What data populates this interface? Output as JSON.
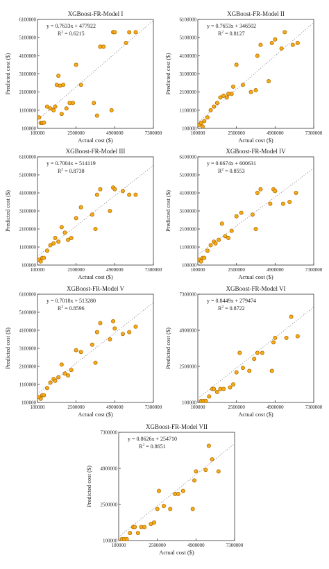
{
  "chart_data": [
    {
      "type": "scatter",
      "title": "XGBoost-FR-Model I",
      "xlabel": "Actual cost ($)",
      "ylabel": "Predicted cost ($)",
      "xlim": [
        100000,
        7300000
      ],
      "ylim": [
        100000,
        6100000
      ],
      "xticks": [
        "100000",
        "2500000",
        "4900000",
        "7300000"
      ],
      "yticks": [
        "100000",
        "1100000",
        "2100000",
        "3100000",
        "4100000",
        "5100000",
        "6100000"
      ],
      "equation": "y = 0.7633x + 477922",
      "r2_label": "R",
      "r2_sup": "2",
      "r2_value": " = 0.6215",
      "trend": {
        "slope": 0.7633,
        "intercept": 477922
      },
      "points": [
        [
          200000,
          700000
        ],
        [
          300000,
          400000
        ],
        [
          400000,
          400000
        ],
        [
          500000,
          420000
        ],
        [
          700000,
          1300000
        ],
        [
          900000,
          1200000
        ],
        [
          1100000,
          1100000
        ],
        [
          1200000,
          1300000
        ],
        [
          1300000,
          2500000
        ],
        [
          1400000,
          3000000
        ],
        [
          1500000,
          2450000
        ],
        [
          1600000,
          900000
        ],
        [
          1700000,
          2500000
        ],
        [
          1900000,
          1200000
        ],
        [
          2100000,
          1500000
        ],
        [
          2300000,
          1500000
        ],
        [
          2500000,
          3600000
        ],
        [
          2800000,
          2500000
        ],
        [
          3600000,
          1500000
        ],
        [
          3800000,
          800000
        ],
        [
          4000000,
          4600000
        ],
        [
          4200000,
          4600000
        ],
        [
          4700000,
          1100000
        ],
        [
          4800000,
          5400000
        ],
        [
          4900000,
          5400000
        ],
        [
          5600000,
          4800000
        ],
        [
          5800000,
          5400000
        ],
        [
          6200000,
          5400000
        ]
      ]
    },
    {
      "type": "scatter",
      "title": "XGBoost-FR-Model II",
      "xlabel": "Actual cost ($)",
      "ylabel": "Predicted cost ($)",
      "xlim": [
        100000,
        7300000
      ],
      "ylim": [
        100000,
        6100000
      ],
      "xticks": [
        "100000",
        "2500000",
        "4900000",
        "7300000"
      ],
      "yticks": [
        "100000",
        "1100000",
        "2100000",
        "3100000",
        "4100000",
        "5100000",
        "6100000"
      ],
      "equation": "y = 0.7653x + 346502",
      "r2_label": "R",
      "r2_sup": "2",
      "r2_value": " = 0.8127",
      "trend": {
        "slope": 0.7653,
        "intercept": 346502
      },
      "points": [
        [
          200000,
          300000
        ],
        [
          300000,
          400000
        ],
        [
          400000,
          200000
        ],
        [
          500000,
          500000
        ],
        [
          700000,
          700000
        ],
        [
          900000,
          1100000
        ],
        [
          1100000,
          1300000
        ],
        [
          1300000,
          1500000
        ],
        [
          1500000,
          1800000
        ],
        [
          1700000,
          1900000
        ],
        [
          1900000,
          1800000
        ],
        [
          2000000,
          2000000
        ],
        [
          2200000,
          2000000
        ],
        [
          2300000,
          2400000
        ],
        [
          2500000,
          3600000
        ],
        [
          2900000,
          2500000
        ],
        [
          3400000,
          2100000
        ],
        [
          3700000,
          2200000
        ],
        [
          3800000,
          4100000
        ],
        [
          4000000,
          4700000
        ],
        [
          4500000,
          2700000
        ],
        [
          4700000,
          4800000
        ],
        [
          4900000,
          5000000
        ],
        [
          5300000,
          4500000
        ],
        [
          5500000,
          5400000
        ],
        [
          6000000,
          4700000
        ],
        [
          6300000,
          4800000
        ]
      ]
    },
    {
      "type": "scatter",
      "title": "XGBoost-FR-Model III",
      "xlabel": "Actual cost ($)",
      "ylabel": "Predicted cost ($)",
      "xlim": [
        100000,
        7300000
      ],
      "ylim": [
        100000,
        6100000
      ],
      "xticks": [
        "100000",
        "2500000",
        "4900000",
        "7300000"
      ],
      "yticks": [
        "100000",
        "1100000",
        "2100000",
        "3100000",
        "4100000",
        "5100000",
        "6100000"
      ],
      "equation": "y = 0.7004x + 514119",
      "r2_label": "R",
      "r2_sup": "2",
      "r2_value": " = 0.8738",
      "trend": {
        "slope": 0.7004,
        "intercept": 514119
      },
      "points": [
        [
          200000,
          400000
        ],
        [
          300000,
          300000
        ],
        [
          400000,
          500000
        ],
        [
          500000,
          500000
        ],
        [
          700000,
          900000
        ],
        [
          900000,
          1200000
        ],
        [
          1100000,
          1300000
        ],
        [
          1200000,
          1600000
        ],
        [
          1400000,
          1400000
        ],
        [
          1600000,
          2200000
        ],
        [
          1800000,
          1900000
        ],
        [
          2000000,
          1500000
        ],
        [
          2200000,
          1600000
        ],
        [
          2500000,
          2700000
        ],
        [
          2800000,
          3300000
        ],
        [
          3500000,
          2900000
        ],
        [
          3700000,
          2100000
        ],
        [
          3800000,
          4000000
        ],
        [
          4000000,
          4300000
        ],
        [
          4600000,
          3100000
        ],
        [
          4800000,
          4400000
        ],
        [
          4900000,
          4300000
        ],
        [
          5400000,
          4200000
        ],
        [
          5800000,
          4000000
        ],
        [
          6200000,
          4000000
        ]
      ]
    },
    {
      "type": "scatter",
      "title": "XGBoost-FR-Model IV",
      "xlabel": "Actual cost ($)",
      "ylabel": "Predicted cost ($)",
      "xlim": [
        100000,
        7300000
      ],
      "ylim": [
        100000,
        6100000
      ],
      "xticks": [
        "100000",
        "2500000",
        "4900000",
        "7300000"
      ],
      "yticks": [
        "100000",
        "1100000",
        "2100000",
        "3100000",
        "4100000",
        "5100000",
        "6100000"
      ],
      "equation": "y = 0.6674x + 600631",
      "r2_label": "R",
      "r2_sup": "2",
      "r2_value": " = 0.8553",
      "trend": {
        "slope": 0.6674,
        "intercept": 600631
      },
      "points": [
        [
          200000,
          400000
        ],
        [
          300000,
          300000
        ],
        [
          400000,
          500000
        ],
        [
          500000,
          500000
        ],
        [
          700000,
          900000
        ],
        [
          900000,
          1200000
        ],
        [
          1100000,
          1400000
        ],
        [
          1200000,
          1300000
        ],
        [
          1400000,
          1500000
        ],
        [
          1600000,
          2400000
        ],
        [
          1800000,
          1700000
        ],
        [
          2000000,
          1600000
        ],
        [
          2200000,
          2000000
        ],
        [
          2500000,
          2800000
        ],
        [
          2800000,
          3000000
        ],
        [
          3500000,
          2900000
        ],
        [
          3700000,
          2100000
        ],
        [
          3800000,
          4100000
        ],
        [
          4000000,
          4300000
        ],
        [
          4600000,
          3500000
        ],
        [
          4800000,
          4300000
        ],
        [
          4900000,
          4200000
        ],
        [
          5400000,
          3500000
        ],
        [
          5800000,
          3600000
        ],
        [
          6200000,
          4100000
        ]
      ]
    },
    {
      "type": "scatter",
      "title": "XGBoost-FR-Model V",
      "xlabel": "Actual cost ($)",
      "ylabel": "Predicted cost ($)",
      "xlim": [
        100000,
        7300000
      ],
      "ylim": [
        100000,
        6100000
      ],
      "xticks": [
        "100000",
        "2500000",
        "4900000",
        "7300000"
      ],
      "yticks": [
        "100000",
        "1100000",
        "2100000",
        "3100000",
        "4100000",
        "5100000",
        "6100000"
      ],
      "equation": "y = 0.7018x + 513280",
      "r2_label": "R",
      "r2_sup": "2",
      "r2_value": " = 0.8596",
      "trend": {
        "slope": 0.7018,
        "intercept": 513280
      },
      "points": [
        [
          200000,
          400000
        ],
        [
          300000,
          300000
        ],
        [
          400000,
          500000
        ],
        [
          500000,
          500000
        ],
        [
          700000,
          900000
        ],
        [
          900000,
          1200000
        ],
        [
          1100000,
          1400000
        ],
        [
          1200000,
          1300000
        ],
        [
          1400000,
          1500000
        ],
        [
          1600000,
          2200000
        ],
        [
          1800000,
          1700000
        ],
        [
          2000000,
          1600000
        ],
        [
          2200000,
          1900000
        ],
        [
          2500000,
          3000000
        ],
        [
          2800000,
          2900000
        ],
        [
          3500000,
          3300000
        ],
        [
          3700000,
          2300000
        ],
        [
          3800000,
          4000000
        ],
        [
          4000000,
          4500000
        ],
        [
          4600000,
          3600000
        ],
        [
          4800000,
          4600000
        ],
        [
          4900000,
          4200000
        ],
        [
          5400000,
          3900000
        ],
        [
          5800000,
          4000000
        ],
        [
          6200000,
          4300000
        ]
      ]
    },
    {
      "type": "scatter",
      "title": "XGBoost-FR-Model VI",
      "xlabel": "Actual cost ($)",
      "ylabel": "Predicted cost ($)",
      "xlim": [
        100000,
        7300000
      ],
      "ylim": [
        100000,
        7300000
      ],
      "xticks": [
        "100000",
        "2500000",
        "4900000",
        "7300000"
      ],
      "yticks": [
        "100000",
        "2500000",
        "4900000",
        "7300000"
      ],
      "equation": "y = 0.8449x + 279474",
      "r2_label": "R",
      "r2_sup": "2",
      "r2_value": " = 0.8722",
      "trend": {
        "slope": 0.8449,
        "intercept": 279474
      },
      "points": [
        [
          300000,
          200000
        ],
        [
          450000,
          200000
        ],
        [
          600000,
          200000
        ],
        [
          800000,
          500000
        ],
        [
          1000000,
          1000000
        ],
        [
          1100000,
          1000000
        ],
        [
          1300000,
          800000
        ],
        [
          1500000,
          1000000
        ],
        [
          1700000,
          1000000
        ],
        [
          2100000,
          1100000
        ],
        [
          2300000,
          1300000
        ],
        [
          2500000,
          2100000
        ],
        [
          2700000,
          3400000
        ],
        [
          2900000,
          2400000
        ],
        [
          3300000,
          2200000
        ],
        [
          3600000,
          3000000
        ],
        [
          3800000,
          3400000
        ],
        [
          4100000,
          3400000
        ],
        [
          4700000,
          2200000
        ],
        [
          4800000,
          4100000
        ],
        [
          4900000,
          4400000
        ],
        [
          5600000,
          4400000
        ],
        [
          5900000,
          5800000
        ],
        [
          6300000,
          4500000
        ]
      ]
    },
    {
      "type": "scatter",
      "title": "XGBoost-FR-Model VII",
      "xlabel": "Actual cost ($)",
      "ylabel": "Predicted cost ($)",
      "xlim": [
        100000,
        7300000
      ],
      "ylim": [
        100000,
        7300000
      ],
      "xticks": [
        "100000",
        "2500000",
        "4900000",
        "7300000"
      ],
      "yticks": [
        "100000",
        "2500000",
        "4900000",
        "7300000"
      ],
      "equation": "y = 0.8626x + 254710",
      "r2_label": "R",
      "r2_sup": "2",
      "r2_value": " = 0.8651",
      "trend": {
        "slope": 0.8626,
        "intercept": 254710
      },
      "points": [
        [
          300000,
          200000
        ],
        [
          450000,
          200000
        ],
        [
          600000,
          200000
        ],
        [
          800000,
          600000
        ],
        [
          1000000,
          1000000
        ],
        [
          1100000,
          1000000
        ],
        [
          1300000,
          600000
        ],
        [
          1500000,
          1000000
        ],
        [
          1700000,
          1000000
        ],
        [
          2100000,
          1200000
        ],
        [
          2300000,
          1300000
        ],
        [
          2500000,
          2200000
        ],
        [
          2600000,
          3400000
        ],
        [
          2900000,
          2400000
        ],
        [
          3300000,
          2200000
        ],
        [
          3600000,
          3200000
        ],
        [
          3800000,
          3200000
        ],
        [
          4100000,
          3400000
        ],
        [
          4700000,
          2200000
        ],
        [
          4800000,
          4100000
        ],
        [
          4900000,
          4700000
        ],
        [
          5500000,
          4800000
        ],
        [
          5700000,
          6400000
        ],
        [
          5900000,
          5500000
        ],
        [
          6300000,
          4700000
        ]
      ]
    }
  ]
}
